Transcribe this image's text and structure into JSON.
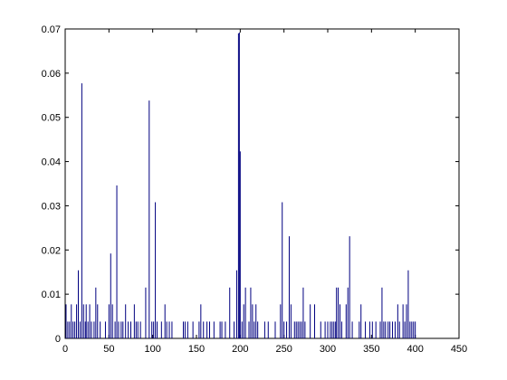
{
  "chart_data": {
    "type": "bar",
    "color": "#000080",
    "x": [
      1,
      3,
      5,
      7,
      9,
      11,
      13,
      15,
      17,
      19,
      21,
      23,
      24,
      26,
      28,
      30,
      33,
      35,
      37,
      40,
      46,
      50,
      52,
      54,
      57,
      59,
      61,
      64,
      66,
      69,
      72,
      75,
      79,
      81,
      83,
      86,
      92,
      96,
      99,
      101,
      103,
      105,
      110,
      114,
      116,
      119,
      122,
      135,
      137,
      140,
      146,
      153,
      155,
      158,
      162,
      165,
      170,
      177,
      179,
      183,
      188,
      193,
      196,
      198,
      199,
      200,
      202,
      204,
      206,
      210,
      212,
      214,
      216,
      218,
      220,
      228,
      232,
      240,
      246,
      248,
      250,
      253,
      256,
      258,
      262,
      264,
      266,
      268,
      270,
      272,
      274,
      280,
      285,
      292,
      297,
      300,
      303,
      305,
      307,
      309,
      310,
      312,
      314,
      316,
      321,
      323,
      325,
      328,
      336,
      338,
      343,
      348,
      351,
      355,
      360,
      362,
      364,
      366,
      369,
      371,
      374,
      377,
      380,
      382,
      386,
      388,
      390,
      392,
      394,
      396,
      398,
      400
    ],
    "values": [
      0.0077,
      0.0038,
      0.0038,
      0.0077,
      0.0038,
      0.0038,
      0.0077,
      0.0154,
      0.0038,
      0.0577,
      0.0077,
      0.0038,
      0.0077,
      0.0038,
      0.0077,
      0.0038,
      0.0038,
      0.0115,
      0.0077,
      0.0038,
      0.0038,
      0.0077,
      0.0192,
      0.0077,
      0.0038,
      0.0346,
      0.0038,
      0.0038,
      0.0038,
      0.0077,
      0.0038,
      0.0038,
      0.0077,
      0.0038,
      0.0038,
      0.0038,
      0.0115,
      0.0538,
      0.0038,
      0.0038,
      0.0308,
      0.0038,
      0.0038,
      0.0077,
      0.0038,
      0.0038,
      0.0038,
      0.0038,
      0.0038,
      0.0038,
      0.0038,
      0.0038,
      0.0077,
      0.0038,
      0.0038,
      0.0038,
      0.0038,
      0.0038,
      0.0038,
      0.0038,
      0.0115,
      0.0038,
      0.0154,
      0.069,
      0.0692,
      0.0423,
      0.0038,
      0.0077,
      0.0115,
      0.0038,
      0.0115,
      0.0077,
      0.0038,
      0.0077,
      0.0038,
      0.0038,
      0.0038,
      0.0038,
      0.0077,
      0.0308,
      0.0038,
      0.0038,
      0.0231,
      0.0077,
      0.0038,
      0.0038,
      0.0038,
      0.0038,
      0.0038,
      0.0115,
      0.0038,
      0.0077,
      0.0077,
      0.0038,
      0.0038,
      0.0038,
      0.0038,
      0.0038,
      0.0038,
      0.0038,
      0.0115,
      0.0115,
      0.0077,
      0.0038,
      0.0077,
      0.0115,
      0.0231,
      0.0038,
      0.0038,
      0.0077,
      0.0038,
      0.0038,
      0.0038,
      0.0038,
      0.0038,
      0.0115,
      0.0038,
      0.0038,
      0.0038,
      0.0038,
      0.0038,
      0.0038,
      0.0077,
      0.0038,
      0.0077,
      0.0038,
      0.0077,
      0.0154,
      0.0038,
      0.0038,
      0.0038,
      0.0038
    ],
    "xlim": [
      0,
      450
    ],
    "xticks": [
      0,
      50,
      100,
      150,
      200,
      250,
      300,
      350,
      400,
      450
    ],
    "ylim": [
      0,
      0.07
    ],
    "yticks": [
      0,
      0.01,
      0.02,
      0.03,
      0.04,
      0.05,
      0.06,
      0.07
    ]
  }
}
